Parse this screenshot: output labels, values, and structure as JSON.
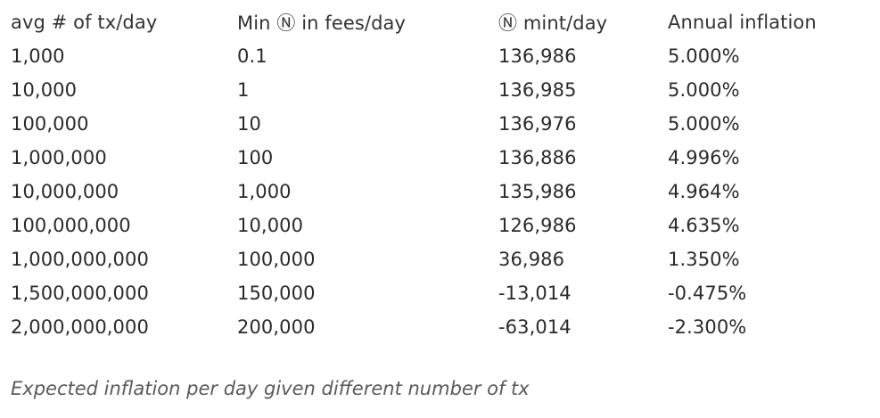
{
  "table": {
    "headers": [
      "avg # of tx/day",
      "Min Ⓝ in fees/day",
      "Ⓝ mint/day",
      "Annual inflation"
    ],
    "rows": [
      [
        "1,000",
        "0.1",
        "136,986",
        "5.000%"
      ],
      [
        "10,000",
        "1",
        "136,985",
        "5.000%"
      ],
      [
        "100,000",
        "10",
        "136,976",
        "5.000%"
      ],
      [
        "1,000,000",
        "100",
        "136,886",
        "4.996%"
      ],
      [
        "10,000,000",
        "1,000",
        "135,986",
        "4.964%"
      ],
      [
        "100,000,000",
        "10,000",
        "126,986",
        "4.635%"
      ],
      [
        "1,000,000,000",
        "100,000",
        "36,986",
        "1.350%"
      ],
      [
        "1,500,000,000",
        "150,000",
        "-13,014",
        "-0.475%"
      ],
      [
        "2,000,000,000",
        "200,000",
        "-63,014",
        "-2.300%"
      ]
    ]
  },
  "caption": "Expected inflation per day given different number of tx"
}
